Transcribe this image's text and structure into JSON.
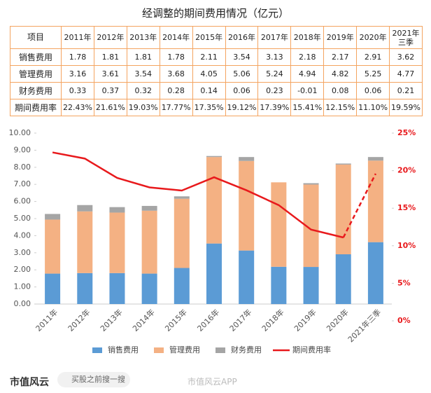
{
  "title": "经调整的期间费用情况（亿元）",
  "table": {
    "header": [
      "项目",
      "2011年",
      "2012年",
      "2013年",
      "2014年",
      "2015年",
      "2016年",
      "2017年",
      "2018年",
      "2019年",
      "2020年",
      "2021年三季"
    ],
    "rows": [
      [
        "销售费用",
        "1.78",
        "1.81",
        "1.81",
        "1.78",
        "2.11",
        "3.54",
        "3.13",
        "2.18",
        "2.17",
        "2.91",
        "3.62"
      ],
      [
        "管理费用",
        "3.16",
        "3.61",
        "3.54",
        "3.68",
        "4.05",
        "5.06",
        "5.24",
        "4.94",
        "4.82",
        "5.25",
        "4.77"
      ],
      [
        "财务费用",
        "0.33",
        "0.37",
        "0.32",
        "0.28",
        "0.14",
        "0.06",
        "0.23",
        "-0.01",
        "0.08",
        "0.06",
        "0.21"
      ],
      [
        "期间费用率",
        "22.43%",
        "21.61%",
        "19.03%",
        "17.77%",
        "17.35%",
        "19.12%",
        "17.39%",
        "15.41%",
        "12.15%",
        "11.10%",
        "19.59%"
      ]
    ]
  },
  "chart_data": {
    "type": "bar",
    "categories": [
      "2011年",
      "2012年",
      "2013年",
      "2014年",
      "2015年",
      "2016年",
      "2017年",
      "2018年",
      "2019年",
      "2020年",
      "2021年三季"
    ],
    "series": [
      {
        "name": "销售费用",
        "color": "#5b9bd5",
        "values": [
          1.78,
          1.81,
          1.81,
          1.78,
          2.11,
          3.54,
          3.13,
          2.18,
          2.17,
          2.91,
          3.62
        ]
      },
      {
        "name": "管理费用",
        "color": "#f4b183",
        "values": [
          3.16,
          3.61,
          3.54,
          3.68,
          4.05,
          5.06,
          5.24,
          4.94,
          4.82,
          5.25,
          4.77
        ]
      },
      {
        "name": "财务费用",
        "color": "#a5a5a5",
        "values": [
          0.33,
          0.37,
          0.32,
          0.28,
          0.14,
          0.06,
          0.23,
          -0.01,
          0.08,
          0.06,
          0.21
        ]
      },
      {
        "name": "期间费用率",
        "type": "line",
        "axis": "y2",
        "color": "#e8191c",
        "last_segment": "dashed",
        "values": [
          22.43,
          21.61,
          19.03,
          17.77,
          17.35,
          19.12,
          17.39,
          15.41,
          12.15,
          11.1,
          19.59
        ]
      }
    ],
    "stacked": true,
    "ylim": [
      0,
      10
    ],
    "yticks": [
      {
        "value": 0,
        "label": "0.00"
      },
      {
        "value": 1,
        "label": "1.00"
      },
      {
        "value": 2,
        "label": "2.00"
      },
      {
        "value": 3,
        "label": "3.00"
      },
      {
        "value": 4,
        "label": "4.00"
      },
      {
        "value": 5,
        "label": "5.00"
      },
      {
        "value": 6,
        "label": "6.00"
      },
      {
        "value": 7,
        "label": "7.00"
      },
      {
        "value": 8,
        "label": "8.00"
      },
      {
        "value": 9,
        "label": "9.00"
      },
      {
        "value": 10,
        "label": "10.00"
      }
    ],
    "y2lim": [
      0,
      25
    ],
    "y2ticks": [
      {
        "value": 0,
        "label": "0%"
      },
      {
        "value": 5,
        "label": "5%"
      },
      {
        "value": 10,
        "label": "10%"
      },
      {
        "value": 15,
        "label": "15%"
      },
      {
        "value": 20,
        "label": "20%"
      },
      {
        "value": 25,
        "label": "25%"
      }
    ],
    "legend": "bottom"
  },
  "footer": {
    "brand": "市值风云",
    "search": "买股之前搜一搜",
    "app": "市值风云APP"
  }
}
